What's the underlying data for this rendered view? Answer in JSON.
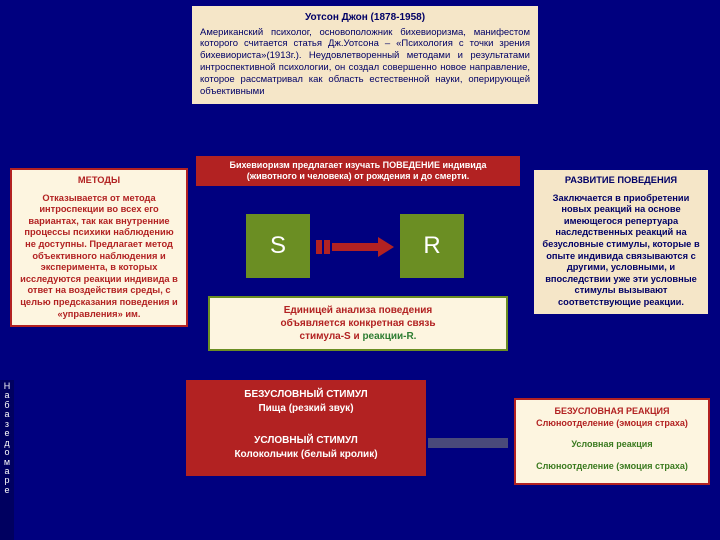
{
  "colors": {
    "page_bg": "#00007f",
    "red": "#b22222",
    "olive": "#6b8e23",
    "navy_text": "#000066",
    "cream": "#f5e6c8",
    "light_cream": "#fdf5e0",
    "green_text": "#2e7d32"
  },
  "top": {
    "name": "Уотсон Джон (1878-1958)",
    "body": "Американский психолог, основоположник бихевиоризма, манифестом которого считается статья Дж.Уотсона – «Психология с точки зрения бихевиориста»(1913г.). Неудовлетворенный методами и результатами интроспективной психологии, он создал совершенно новое направление, которое рассматривал как область естественной науки, оперирующей объективными"
  },
  "banner": "Бихевиоризм предлагает изучать ПОВЕДЕНИЕ индивида (животного и человека) от рождения и до смерти.",
  "methods": {
    "title": "МЕТОДЫ",
    "body": "Отказывается от метода интроспекции во всех его вариантах, так как внутренние процессы психики наблюдению не доступны. Предлагает метод объективного наблюдения и эксперимента, в которых исследуются реакции индивида в ответ на воздействия среды, с целью предсказания поведения и «управления» им."
  },
  "dev": {
    "title": "РАЗВИТИЕ ПОВЕДЕНИЯ",
    "body": "Заключается в приобретении новых реакций на основе имеющегося репертуара наследственных реакций на безусловные стимулы, которые в опыте индивида связываются с другими, условными, и впоследствии уже эти условные стимулы вызывают соответствующие реакции."
  },
  "sr": {
    "s": "S",
    "r": "R"
  },
  "unit": {
    "l1": "Единицей анализа поведения",
    "l2": "объявляется конкретная связь",
    "l3a": "стимула-S ",
    "l3b": "и ",
    "l3c": "реакции-R."
  },
  "stim": {
    "t1": "БЕЗУСЛОВНЫЙ СТИМУЛ",
    "t2": "Пища (резкий звук)",
    "t3": "УСЛОВНЫЙ СТИМУЛ",
    "t4": "Колокольчик (белый кролик)"
  },
  "reac": {
    "t1a": "БЕЗУСЛОВНАЯ РЕАКЦИЯ",
    "t1b": "Слюноотделение (эмоция страха)",
    "t2a": "Условная реакция",
    "t2b": "Слюноотделение (эмоция страха)"
  },
  "vert": "Набазедомаре"
}
